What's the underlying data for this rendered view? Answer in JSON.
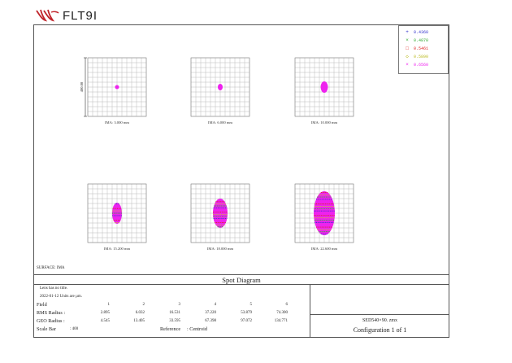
{
  "brand": {
    "name": "FLT9I",
    "logo_icon": "wing-logo-icon"
  },
  "diagram": {
    "title": "Spot Diagram",
    "surface": "SURFACE: IMA",
    "scale_axis_label": "400.00",
    "legend": [
      {
        "symbol": "+",
        "label": "0.4360",
        "color": "#3333cc"
      },
      {
        "symbol": "×",
        "label": "0.4870",
        "color": "#33aa33"
      },
      {
        "symbol": "□",
        "label": "0.5461",
        "color": "#dd2222"
      },
      {
        "symbol": "◇",
        "label": "0.5890",
        "color": "#cccc22"
      },
      {
        "symbol": "×",
        "label": "0.6560",
        "color": "#ee22ee"
      }
    ],
    "panels": [
      {
        "ima_label": "IMA: 3.000 mm",
        "spot_rx": 2.5,
        "spot_ry": 2.5,
        "complexity": 0
      },
      {
        "ima_label": "IMA: 6.000 mm",
        "spot_rx": 3,
        "spot_ry": 4,
        "complexity": 0
      },
      {
        "ima_label": "IMA: 10.000 mm",
        "spot_rx": 4.5,
        "spot_ry": 7,
        "complexity": 0
      },
      {
        "ima_label": "IMA: 15.200 mm",
        "spot_rx": 6,
        "spot_ry": 13,
        "complexity": 1
      },
      {
        "ima_label": "IMA: 18.000 mm",
        "spot_rx": 9,
        "spot_ry": 18,
        "complexity": 2
      },
      {
        "ima_label": "IMA: 22.600 mm",
        "spot_rx": 13,
        "spot_ry": 27,
        "complexity": 3
      }
    ]
  },
  "info": {
    "lens_title": "Lens has no title.",
    "date_units": "2022-01-12  Units are µm.",
    "field_label": "Field",
    "field_values": [
      "1",
      "2",
      "3",
      "4",
      "5",
      "6"
    ],
    "rms_label": "RMS Radius :",
    "rms_values": [
      "2.895",
      "6.032",
      "16.531",
      "37.220",
      "53.879",
      "74.300"
    ],
    "geo_label": "GEO Radius :",
    "geo_values": [
      "4.545",
      "13.405",
      "33.595",
      "67.398",
      "97.072",
      "134.771"
    ],
    "scale_bar_label": "Scale Bar",
    "scale_bar_value": ": 400",
    "reference_label": "Reference",
    "reference_value": ":   Centroid",
    "file_name": "SED540×90. zmx",
    "configuration": "Configuration 1 of 1"
  }
}
